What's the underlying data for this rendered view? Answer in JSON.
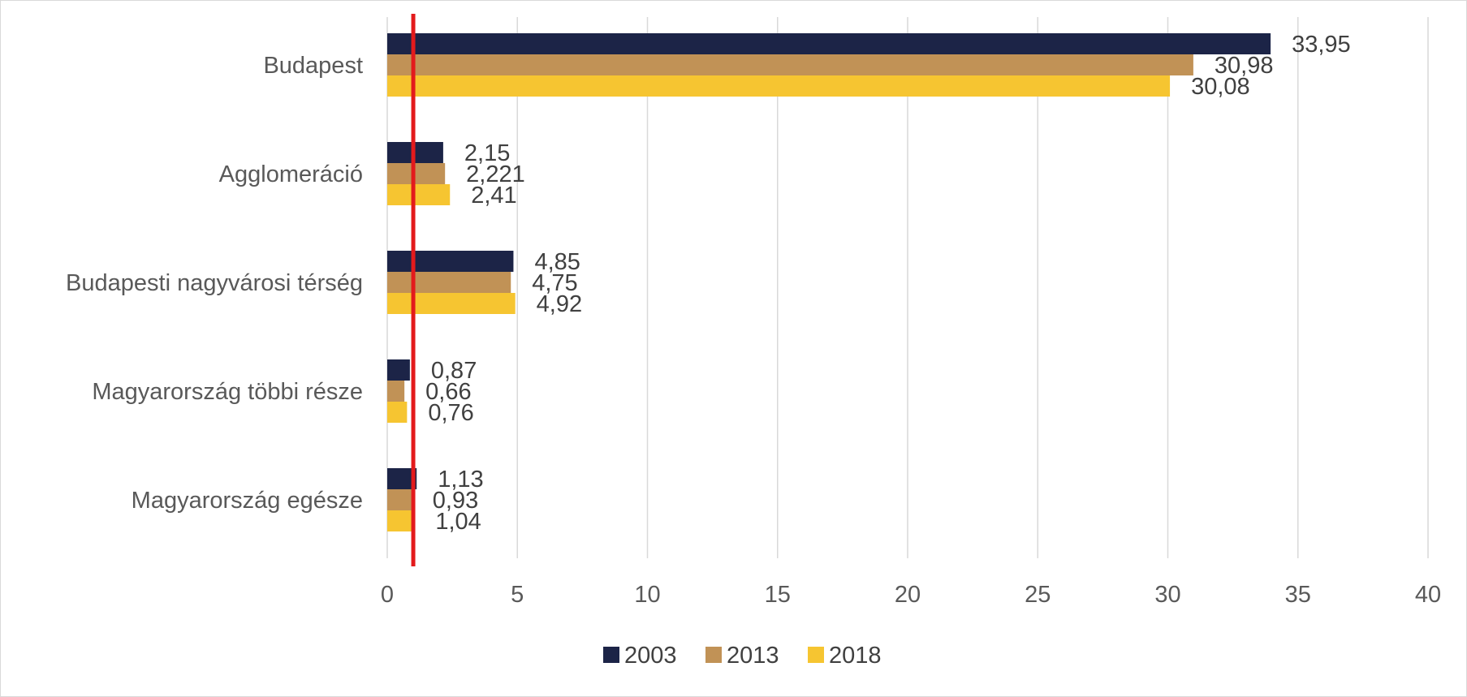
{
  "chart_data": {
    "type": "bar",
    "orientation": "horizontal",
    "title": "",
    "xlabel": "",
    "ylabel": "",
    "categories": [
      "Budapest",
      "Agglomeráció",
      "Budapesti nagyvárosi térség",
      "Magyarország többi része",
      "Magyarország egésze"
    ],
    "series": [
      {
        "name": "2003",
        "color": "#1c2447",
        "values": [
          33.95,
          2.15,
          4.85,
          0.87,
          1.13
        ],
        "labels": [
          "33,95",
          "2,15",
          "4,85",
          "0,87",
          "1,13"
        ]
      },
      {
        "name": "2013",
        "color": "#c19256",
        "values": [
          30.98,
          2.221,
          4.75,
          0.66,
          0.93
        ],
        "labels": [
          "30,98",
          "2,221",
          "4,75",
          "0,66",
          "0,93"
        ]
      },
      {
        "name": "2018",
        "color": "#f6c531",
        "values": [
          30.08,
          2.41,
          4.92,
          0.76,
          1.04
        ],
        "labels": [
          "30,08",
          "2,41",
          "4,92",
          "0,76",
          "1,04"
        ]
      }
    ],
    "xlim": [
      0,
      40
    ],
    "xticks": [
      0,
      5,
      10,
      15,
      20,
      25,
      30,
      35,
      40
    ],
    "xtick_labels": [
      "0",
      "5",
      "10",
      "15",
      "20",
      "25",
      "30",
      "35",
      "40"
    ],
    "grid": "vertical",
    "legend": "bottom",
    "reference_line": {
      "value": 1,
      "color": "#e31a1c"
    }
  }
}
